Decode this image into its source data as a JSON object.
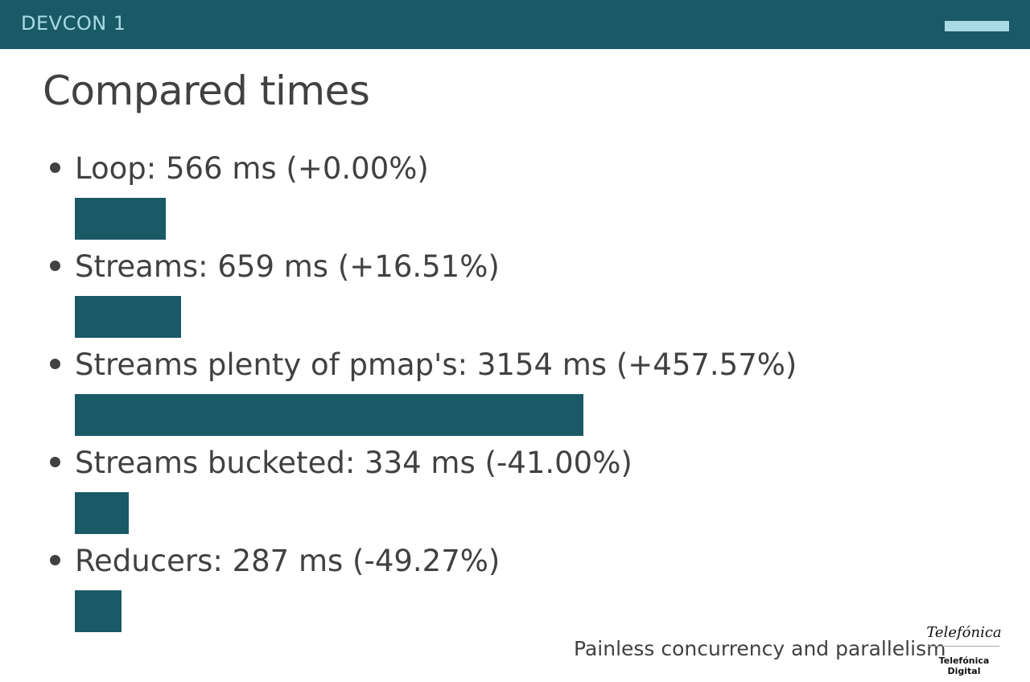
{
  "header": {
    "brand": "DEVCON 1",
    "progress": 1.0,
    "bar_color": "#1a5966",
    "progress_color": "#a9dbe6"
  },
  "slide": {
    "title": "Compared times"
  },
  "chart_data": {
    "type": "bar",
    "orientation": "horizontal",
    "categories": [
      "Loop",
      "Streams",
      "Streams plenty of pmap's",
      "Streams bucketed",
      "Reducers"
    ],
    "values": [
      566,
      659,
      3154,
      334,
      287
    ],
    "labels": [
      "Loop: 566 ms (+0.00%)",
      "Streams: 659 ms (+16.51%)",
      "Streams plenty of pmap's: 3154 ms (+457.57%)",
      "Streams bucketed: 334 ms (-41.00%)",
      "Reducers: 287 ms (-49.27%)"
    ],
    "unit": "ms",
    "bar_color": "#1a5966",
    "title": "",
    "xlabel": "",
    "ylabel": ""
  },
  "footer": {
    "text": "Painless concurrency and parallelism",
    "logo_main": "Telefónica",
    "logo_sub": "Telefónica Digital"
  }
}
